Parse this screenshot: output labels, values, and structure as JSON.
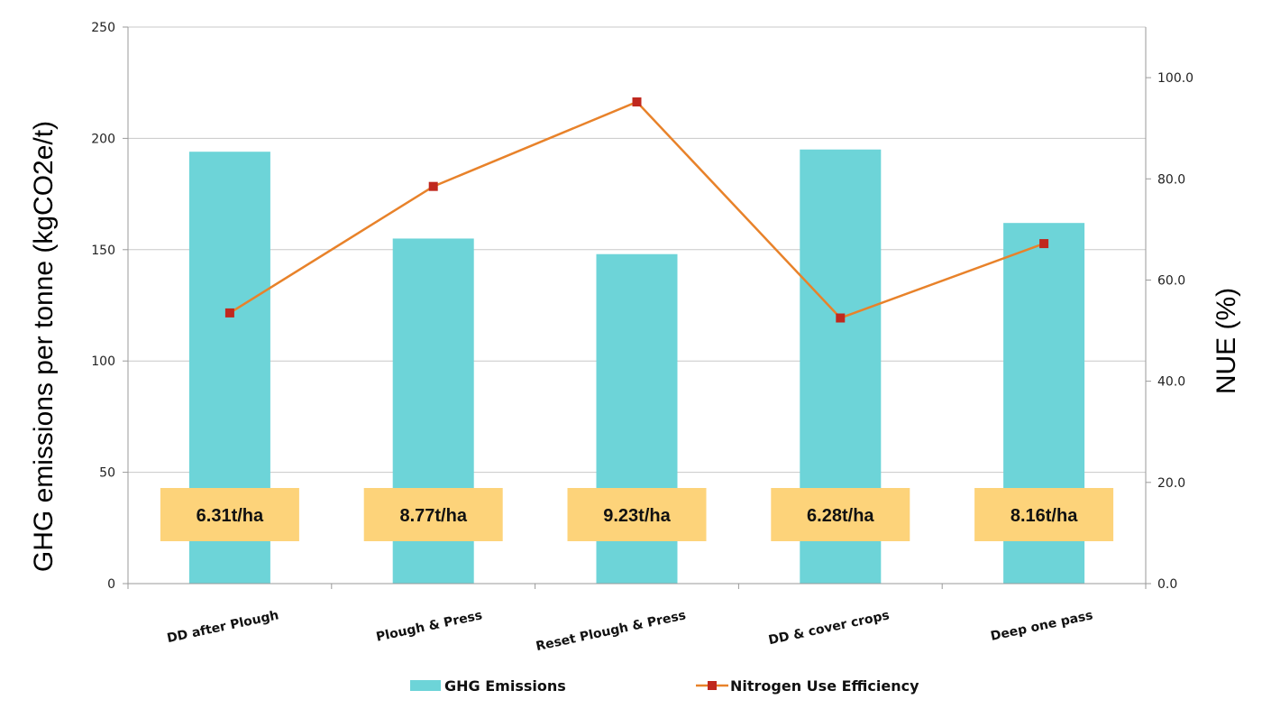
{
  "chart_data": {
    "type": "bar+line",
    "categories": [
      "DD after Plough",
      "Plough & Press",
      "Reset Plough & Press",
      "DD & cover crops",
      "Deep one pass"
    ],
    "series": [
      {
        "name": "GHG Emissions",
        "type": "bar",
        "axis": "left",
        "values": [
          194,
          155,
          148,
          195,
          162
        ]
      },
      {
        "name": "Nitrogen Use Efficiency",
        "type": "line",
        "axis": "right",
        "values": [
          53.5,
          78.5,
          95.2,
          52.5,
          67.2
        ]
      }
    ],
    "bar_labels": [
      "6.31t/ha",
      "8.77t/ha",
      "9.23t/ha",
      "6.28t/ha",
      "8.16t/ha"
    ],
    "ylabel": "GHG emissions per tonne (kgCO2e/t)",
    "y2label": "NUE (%)",
    "ylim": [
      0,
      250
    ],
    "y_ticks": [
      "0",
      "50",
      "100",
      "150",
      "200",
      "250"
    ],
    "y2lim": [
      0,
      110
    ],
    "y2_ticks": [
      "0.0",
      "20.0",
      "40.0",
      "60.0",
      "80.0",
      "100.0"
    ],
    "grid": true,
    "legend_position": "bottom",
    "colors": {
      "bar": "#6dd4d8",
      "line": "#e8822a",
      "marker": "#c0281e",
      "label_box": "#fdd37a"
    }
  }
}
